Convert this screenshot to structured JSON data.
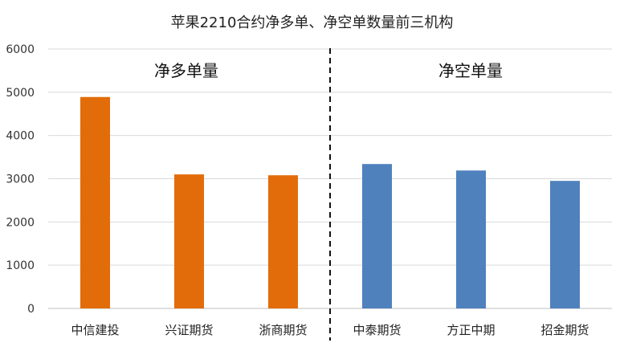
{
  "chart_data": {
    "type": "bar",
    "title": "苹果2210合约净多单、净空单数量前三机构",
    "categories": [
      "中信建投",
      "兴证期货",
      "浙商期货",
      "中泰期货",
      "方正中期",
      "招金期货"
    ],
    "values": [
      4890,
      3100,
      3080,
      3340,
      3190,
      2950
    ],
    "groups": [
      {
        "label": "净多单量",
        "categories": [
          "中信建投",
          "兴证期货",
          "浙商期货"
        ],
        "color": "#E36C0A"
      },
      {
        "label": "净空单量",
        "categories": [
          "中泰期货",
          "方正中期",
          "招金期货"
        ],
        "color": "#4F81BD"
      }
    ],
    "ylim": [
      0,
      6000
    ],
    "yticks": [
      0,
      1000,
      2000,
      3000,
      4000,
      5000,
      6000
    ],
    "grid": true,
    "xlabel": "",
    "ylabel": ""
  }
}
